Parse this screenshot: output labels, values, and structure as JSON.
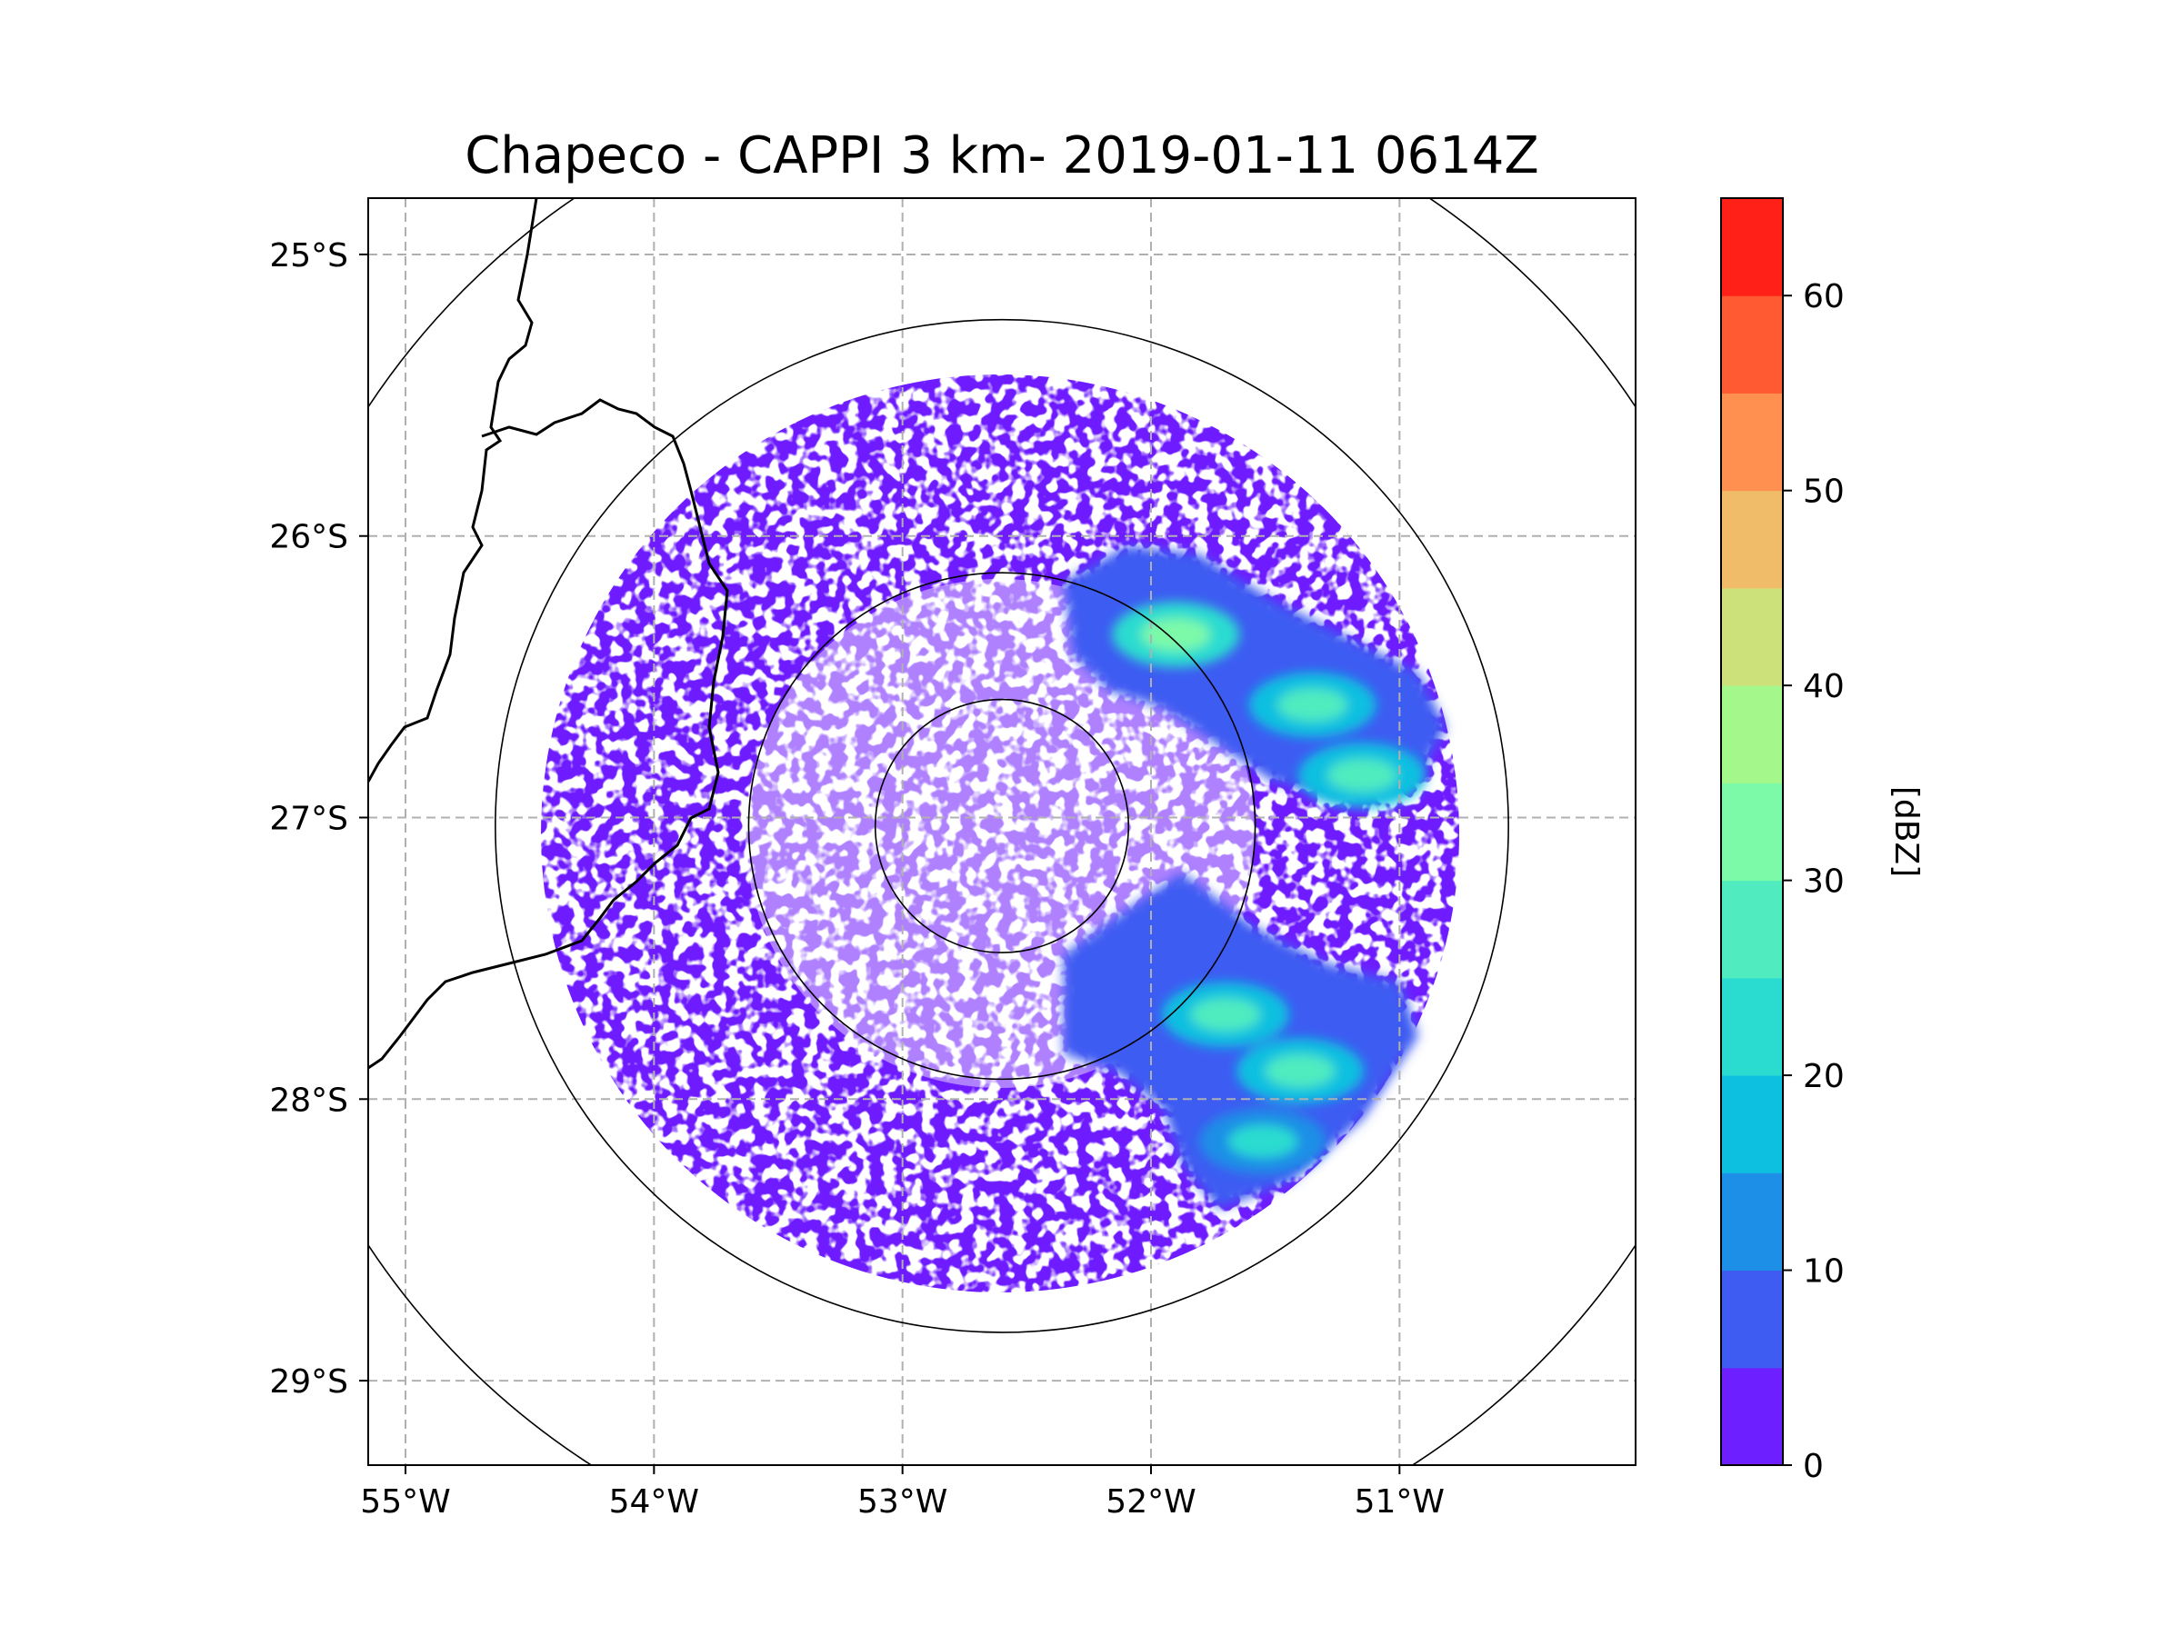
{
  "chart_data": {
    "type": "heatmap",
    "title": "Chapeco - CAPPI 3 km- 2019-01-11 0614Z",
    "radar_site": "Chapeco",
    "product": "CAPPI 3 km",
    "datetime": "2019-01-11 0614Z",
    "xlabel": "",
    "ylabel": "",
    "x_ticks": [
      {
        "value": -55,
        "label": "55°W"
      },
      {
        "value": -54,
        "label": "54°W"
      },
      {
        "value": -53,
        "label": "53°W"
      },
      {
        "value": -52,
        "label": "52°W"
      },
      {
        "value": -51,
        "label": "51°W"
      }
    ],
    "y_ticks": [
      {
        "value": -25,
        "label": "25°S"
      },
      {
        "value": -26,
        "label": "26°S"
      },
      {
        "value": -27,
        "label": "27°S"
      },
      {
        "value": -28,
        "label": "28°S"
      },
      {
        "value": -29,
        "label": "29°S"
      }
    ],
    "xlim": [
      -55.15,
      -50.05
    ],
    "ylim": [
      -29.3,
      -24.8
    ],
    "radar_center": {
      "lon": -52.6,
      "lat": -27.03
    },
    "range_rings_km": [
      50,
      100,
      200,
      300
    ],
    "colorbar": {
      "label": "[dBZ]",
      "range": [
        0,
        65
      ],
      "bounds": [
        0,
        5,
        10,
        15,
        20,
        25,
        30,
        35,
        40,
        45,
        50,
        55,
        60,
        65
      ],
      "colors": [
        "#6e1fff",
        "#3e5cf2",
        "#1e8fe6",
        "#0ec0e0",
        "#2adcd0",
        "#50ecc0",
        "#7dfaa8",
        "#a4f78a",
        "#cce17a",
        "#f0bc6a",
        "#ff9050",
        "#ff5a32",
        "#ff2018"
      ],
      "ticks": [
        {
          "value": 0,
          "label": "0"
        },
        {
          "value": 10,
          "label": "10"
        },
        {
          "value": 20,
          "label": "20"
        },
        {
          "value": 30,
          "label": "30"
        },
        {
          "value": 40,
          "label": "40"
        },
        {
          "value": 50,
          "label": "50"
        },
        {
          "value": 60,
          "label": "60"
        }
      ]
    },
    "echo_cells": [
      {
        "region": "north-east band",
        "lon": -51.9,
        "lat": -26.35,
        "max_dbz": 30
      },
      {
        "region": "north-east band",
        "lon": -51.35,
        "lat": -26.6,
        "max_dbz": 25
      },
      {
        "region": "north-east band",
        "lon": -51.15,
        "lat": -26.85,
        "max_dbz": 25
      },
      {
        "region": "south-east cluster",
        "lon": -51.7,
        "lat": -27.7,
        "max_dbz": 25
      },
      {
        "region": "south-east cluster",
        "lon": -51.4,
        "lat": -27.9,
        "max_dbz": 25
      },
      {
        "region": "south-east cluster",
        "lon": -51.55,
        "lat": -28.15,
        "max_dbz": 20
      }
    ],
    "grid": true
  }
}
